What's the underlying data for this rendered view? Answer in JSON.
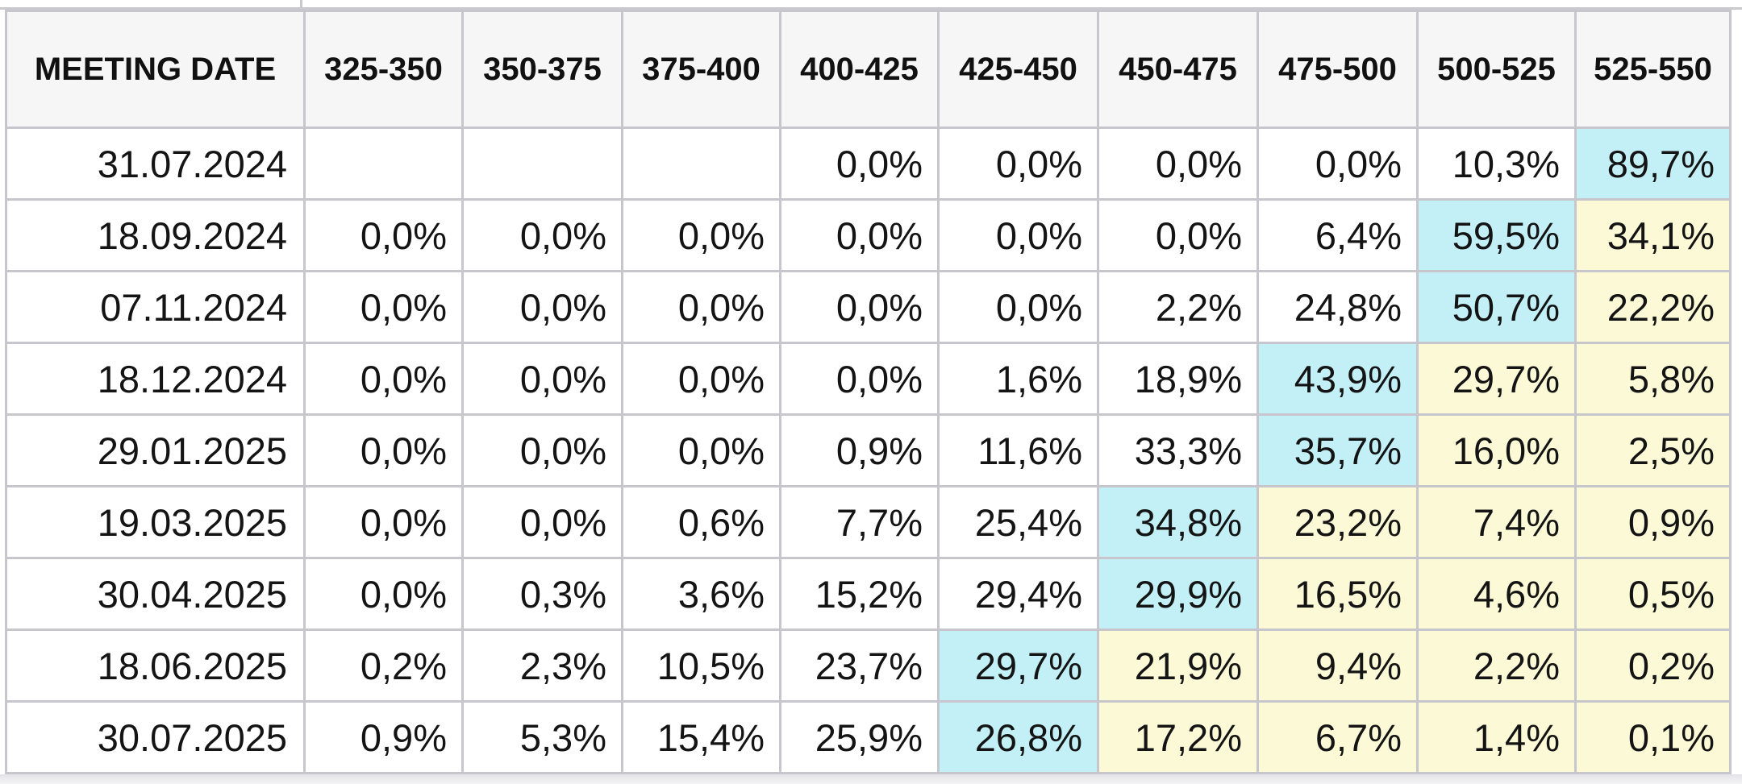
{
  "table": {
    "header_first": "MEETING DATE",
    "ranges": [
      "325-350",
      "350-375",
      "375-400",
      "400-425",
      "425-450",
      "450-475",
      "475-500",
      "500-525",
      "525-550"
    ],
    "highlight_colors": {
      "blue": "#c2f0f6",
      "yellow": "#fbf9d6"
    },
    "rows": [
      {
        "date": "31.07.2024",
        "cells": [
          {
            "v": "",
            "hl": ""
          },
          {
            "v": "",
            "hl": ""
          },
          {
            "v": "",
            "hl": ""
          },
          {
            "v": "0,0%",
            "hl": ""
          },
          {
            "v": "0,0%",
            "hl": ""
          },
          {
            "v": "0,0%",
            "hl": ""
          },
          {
            "v": "0,0%",
            "hl": ""
          },
          {
            "v": "10,3%",
            "hl": ""
          },
          {
            "v": "89,7%",
            "hl": "blue"
          }
        ]
      },
      {
        "date": "18.09.2024",
        "cells": [
          {
            "v": "0,0%",
            "hl": ""
          },
          {
            "v": "0,0%",
            "hl": ""
          },
          {
            "v": "0,0%",
            "hl": ""
          },
          {
            "v": "0,0%",
            "hl": ""
          },
          {
            "v": "0,0%",
            "hl": ""
          },
          {
            "v": "0,0%",
            "hl": ""
          },
          {
            "v": "6,4%",
            "hl": ""
          },
          {
            "v": "59,5%",
            "hl": "blue"
          },
          {
            "v": "34,1%",
            "hl": "yellow"
          }
        ]
      },
      {
        "date": "07.11.2024",
        "cells": [
          {
            "v": "0,0%",
            "hl": ""
          },
          {
            "v": "0,0%",
            "hl": ""
          },
          {
            "v": "0,0%",
            "hl": ""
          },
          {
            "v": "0,0%",
            "hl": ""
          },
          {
            "v": "0,0%",
            "hl": ""
          },
          {
            "v": "2,2%",
            "hl": ""
          },
          {
            "v": "24,8%",
            "hl": ""
          },
          {
            "v": "50,7%",
            "hl": "blue"
          },
          {
            "v": "22,2%",
            "hl": "yellow"
          }
        ]
      },
      {
        "date": "18.12.2024",
        "cells": [
          {
            "v": "0,0%",
            "hl": ""
          },
          {
            "v": "0,0%",
            "hl": ""
          },
          {
            "v": "0,0%",
            "hl": ""
          },
          {
            "v": "0,0%",
            "hl": ""
          },
          {
            "v": "1,6%",
            "hl": ""
          },
          {
            "v": "18,9%",
            "hl": ""
          },
          {
            "v": "43,9%",
            "hl": "blue"
          },
          {
            "v": "29,7%",
            "hl": "yellow"
          },
          {
            "v": "5,8%",
            "hl": "yellow"
          }
        ]
      },
      {
        "date": "29.01.2025",
        "cells": [
          {
            "v": "0,0%",
            "hl": ""
          },
          {
            "v": "0,0%",
            "hl": ""
          },
          {
            "v": "0,0%",
            "hl": ""
          },
          {
            "v": "0,9%",
            "hl": ""
          },
          {
            "v": "11,6%",
            "hl": ""
          },
          {
            "v": "33,3%",
            "hl": ""
          },
          {
            "v": "35,7%",
            "hl": "blue"
          },
          {
            "v": "16,0%",
            "hl": "yellow"
          },
          {
            "v": "2,5%",
            "hl": "yellow"
          }
        ]
      },
      {
        "date": "19.03.2025",
        "cells": [
          {
            "v": "0,0%",
            "hl": ""
          },
          {
            "v": "0,0%",
            "hl": ""
          },
          {
            "v": "0,6%",
            "hl": ""
          },
          {
            "v": "7,7%",
            "hl": ""
          },
          {
            "v": "25,4%",
            "hl": ""
          },
          {
            "v": "34,8%",
            "hl": "blue"
          },
          {
            "v": "23,2%",
            "hl": "yellow"
          },
          {
            "v": "7,4%",
            "hl": "yellow"
          },
          {
            "v": "0,9%",
            "hl": "yellow"
          }
        ]
      },
      {
        "date": "30.04.2025",
        "cells": [
          {
            "v": "0,0%",
            "hl": ""
          },
          {
            "v": "0,3%",
            "hl": ""
          },
          {
            "v": "3,6%",
            "hl": ""
          },
          {
            "v": "15,2%",
            "hl": ""
          },
          {
            "v": "29,4%",
            "hl": ""
          },
          {
            "v": "29,9%",
            "hl": "blue"
          },
          {
            "v": "16,5%",
            "hl": "yellow"
          },
          {
            "v": "4,6%",
            "hl": "yellow"
          },
          {
            "v": "0,5%",
            "hl": "yellow"
          }
        ]
      },
      {
        "date": "18.06.2025",
        "cells": [
          {
            "v": "0,2%",
            "hl": ""
          },
          {
            "v": "2,3%",
            "hl": ""
          },
          {
            "v": "10,5%",
            "hl": ""
          },
          {
            "v": "23,7%",
            "hl": ""
          },
          {
            "v": "29,7%",
            "hl": "blue"
          },
          {
            "v": "21,9%",
            "hl": "yellow"
          },
          {
            "v": "9,4%",
            "hl": "yellow"
          },
          {
            "v": "2,2%",
            "hl": "yellow"
          },
          {
            "v": "0,2%",
            "hl": "yellow"
          }
        ]
      },
      {
        "date": "30.07.2025",
        "cells": [
          {
            "v": "0,9%",
            "hl": ""
          },
          {
            "v": "5,3%",
            "hl": ""
          },
          {
            "v": "15,4%",
            "hl": ""
          },
          {
            "v": "25,9%",
            "hl": ""
          },
          {
            "v": "26,8%",
            "hl": "blue"
          },
          {
            "v": "17,2%",
            "hl": "yellow"
          },
          {
            "v": "6,7%",
            "hl": "yellow"
          },
          {
            "v": "1,4%",
            "hl": "yellow"
          },
          {
            "v": "0,1%",
            "hl": "yellow"
          }
        ]
      }
    ]
  }
}
